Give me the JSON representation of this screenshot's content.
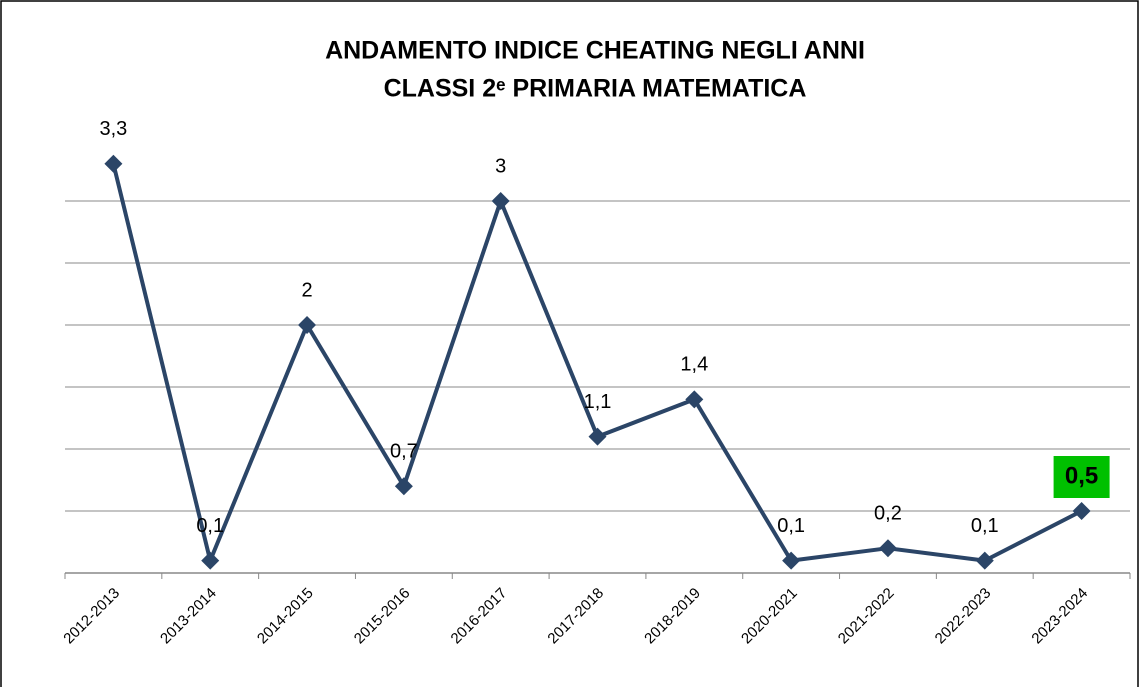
{
  "chart_data": {
    "type": "line",
    "title": [
      "ANDAMENTO INDICE CHEATING NEGLI ANNI",
      "CLASSI 2ᵉ PRIMARIA MATEMATICA"
    ],
    "categories": [
      "2012-2013",
      "2013-2014",
      "2014-2015",
      "2015-2016",
      "2016-2017",
      "2017-2018",
      "2018-2019",
      "2020-2021",
      "2021-2022",
      "2022-2023",
      "2023-2024"
    ],
    "values": [
      3.3,
      0.1,
      2,
      0.7,
      3,
      1.1,
      1.4,
      0.1,
      0.2,
      0.1,
      0.5
    ],
    "value_labels": [
      "3,3",
      "0,1",
      "2",
      "0,7",
      "3",
      "1,1",
      "1,4",
      "0,1",
      "0,2",
      "0,1",
      "0,5"
    ],
    "color": "#2b4567",
    "ylim": [
      0,
      3.5
    ],
    "yticks": [
      0,
      0.5,
      1,
      1.5,
      2,
      2.5,
      3
    ],
    "grid": true,
    "highlight": {
      "index": 10,
      "color": "#00c000"
    }
  }
}
